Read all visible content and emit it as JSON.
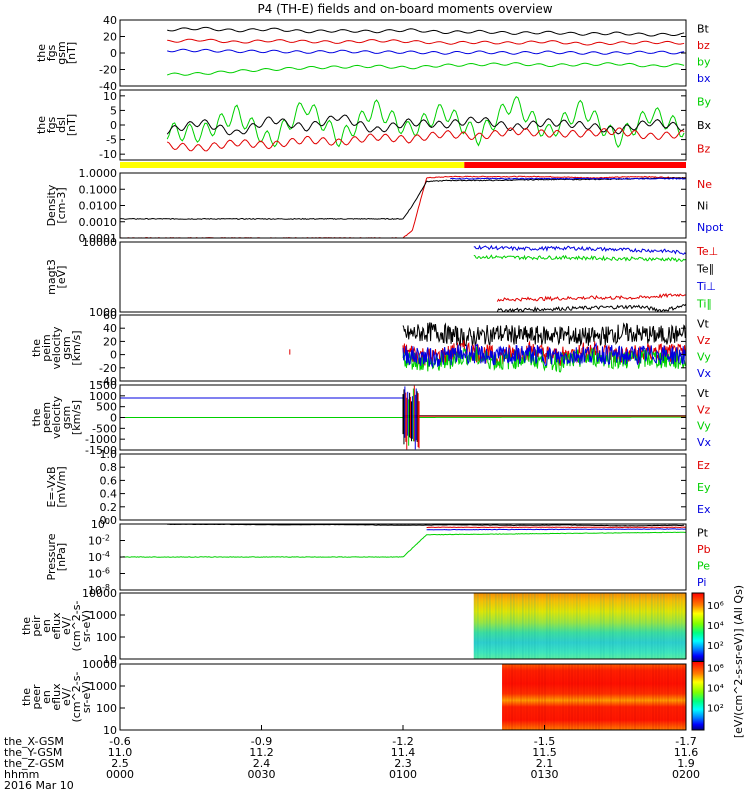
{
  "title": "P4 (TH-E) fields and on-board moments overview",
  "colors": {
    "black": "#000000",
    "red": "#e00000",
    "green": "#00d000",
    "blue": "#0000e0",
    "yellow": "#ffff00"
  },
  "bars": {
    "left_color": "#ffff00",
    "right_color": "#ff0000",
    "switch_hhmm": "0113"
  },
  "chart_data": [
    {
      "type": "line",
      "name": "fgs_gsm",
      "ylabel": [
        "the",
        "fgs",
        "gsm",
        "[nT]"
      ],
      "ylim": [
        -40,
        40
      ],
      "yticks": [
        -40,
        -20,
        0,
        20,
        40
      ],
      "series": [
        {
          "name": "Bt",
          "color": "#000000",
          "values": [
            28,
            30,
            27,
            29,
            26,
            27,
            26,
            28,
            25,
            26,
            24,
            25,
            23,
            24,
            22,
            23
          ]
        },
        {
          "name": "bz",
          "color": "#e00000",
          "values": [
            14,
            16,
            13,
            15,
            14,
            13,
            15,
            14,
            12,
            13,
            12,
            14,
            11,
            12,
            13,
            12
          ]
        },
        {
          "name": "by",
          "color": "#00d000",
          "values": [
            -26,
            -25,
            -22,
            -20,
            -18,
            -17,
            -16,
            -18,
            -15,
            -14,
            -13,
            -15,
            -14,
            -13,
            -16,
            -14
          ]
        },
        {
          "name": "bx",
          "color": "#0000e0",
          "values": [
            3,
            3,
            2,
            2,
            1,
            2,
            1,
            1,
            0,
            1,
            0,
            1,
            0,
            0,
            1,
            0
          ]
        }
      ],
      "legend": [
        "Bt",
        "bz",
        "by",
        "bx"
      ]
    },
    {
      "type": "line",
      "name": "fgs_dsl",
      "ylabel": [
        "the",
        "fgs",
        "dsl",
        "[nT]"
      ],
      "ylim": [
        -12,
        12
      ],
      "yticks": [
        -10,
        -5,
        0,
        5,
        10
      ],
      "series": [
        {
          "name": "By",
          "color": "#00d000",
          "values": [
            -2,
            -3,
            4,
            -6,
            7,
            -5,
            6,
            -2,
            5,
            -4,
            8,
            -3,
            6,
            -5,
            4,
            -2
          ]
        },
        {
          "name": "Bx",
          "color": "#000000",
          "values": [
            -2,
            1,
            -3,
            2,
            -1,
            3,
            -2,
            1,
            0,
            2,
            -1,
            1,
            0,
            -2,
            1,
            -1
          ]
        },
        {
          "name": "Bz",
          "color": "#e00000",
          "values": [
            -7,
            -8,
            -6,
            -7,
            -5,
            -6,
            -4,
            -5,
            -3,
            -4,
            -2,
            -3,
            -3,
            -2,
            -4,
            -3
          ]
        }
      ],
      "legend": [
        "By",
        "Bx",
        "Bz"
      ]
    },
    {
      "type": "line",
      "name": "density",
      "ylabel": [
        "Density",
        "[cm-3]"
      ],
      "yscale": "log",
      "ylim": [
        0.0001,
        1.0
      ],
      "yticks": [
        0.0001,
        0.001,
        0.01,
        0.1,
        1.0
      ],
      "ytick_labels": [
        "0.0001",
        "0.0010",
        "0.0100",
        "0.1000",
        "1.0000"
      ],
      "series": [
        {
          "name": "Ne",
          "color": "#e00000",
          "x_hhmm": [
            "0000",
            "0100",
            "0102",
            "0105",
            "0110",
            "0120",
            "0130",
            "0140",
            "0150",
            "0200"
          ],
          "values": [
            0.0001,
            0.0001,
            0.0003,
            0.5,
            0.6,
            0.6,
            0.6,
            0.5,
            0.6,
            0.5
          ]
        },
        {
          "name": "Ni",
          "color": "#000000",
          "x_hhmm": [
            "0000",
            "0100",
            "0102",
            "0105",
            "0110",
            "0120",
            "0130",
            "0140",
            "0150",
            "0200"
          ],
          "values": [
            0.0015,
            0.0015,
            0.01,
            0.3,
            0.35,
            0.35,
            0.4,
            0.4,
            0.45,
            0.5
          ]
        },
        {
          "name": "Npot",
          "color": "#0000e0",
          "x_hhmm": [
            "0110",
            "0200"
          ],
          "values": [
            0.45,
            0.45
          ]
        }
      ],
      "legend": [
        "Ne",
        "Ni",
        "Npot"
      ]
    },
    {
      "type": "line",
      "name": "temperature",
      "ylabel": [
        "magt3",
        "[eV]"
      ],
      "yscale": "log",
      "ylim": [
        1000,
        10000
      ],
      "yticks": [
        1000,
        10000
      ],
      "ytick_labels": [
        "1000",
        "10000"
      ],
      "series": [
        {
          "name": "Te⊥",
          "color": "#e00000",
          "x_hhmm": [
            "0120",
            "0130",
            "0140",
            "0150",
            "0200"
          ],
          "values": [
            1500,
            1550,
            1600,
            1600,
            1800
          ]
        },
        {
          "name": "Te∥",
          "color": "#000000",
          "x_hhmm": [
            "0120",
            "0130",
            "0140",
            "0150",
            "0155",
            "0200"
          ],
          "values": [
            1050,
            1100,
            1150,
            1200,
            1050,
            1250
          ]
        },
        {
          "name": "Ti⊥",
          "color": "#0000e0",
          "x_hhmm": [
            "0115",
            "0125",
            "0135",
            "0145",
            "0155",
            "0200"
          ],
          "values": [
            8500,
            8000,
            8200,
            7800,
            7500,
            7000
          ]
        },
        {
          "name": "Ti∥",
          "color": "#00d000",
          "x_hhmm": [
            "0115",
            "0125",
            "0135",
            "0145",
            "0155",
            "0200"
          ],
          "values": [
            6200,
            6000,
            6000,
            5800,
            5700,
            5500
          ]
        }
      ],
      "legend": [
        "Te⊥",
        "Te∥",
        "Ti⊥",
        "Ti∥"
      ]
    },
    {
      "type": "line",
      "name": "peim_velocity",
      "ylabel": [
        "the",
        "peim",
        "velocity",
        "gsm",
        "[km/s]"
      ],
      "ylim": [
        -40,
        60
      ],
      "yticks": [
        -40,
        -20,
        0,
        20,
        40,
        60
      ],
      "series": [
        {
          "name": "Vt",
          "color": "#000000",
          "values": [
            30,
            35,
            25,
            32,
            28,
            30,
            26,
            33,
            29,
            31
          ]
        },
        {
          "name": "Vz",
          "color": "#e00000",
          "values": [
            5,
            -5,
            8,
            -3,
            6,
            -4,
            7,
            -2,
            4,
            0
          ]
        },
        {
          "name": "Vy",
          "color": "#00d000",
          "values": [
            -5,
            -15,
            0,
            -10,
            -5,
            -12,
            -3,
            -8,
            -6,
            -10
          ]
        },
        {
          "name": "Vx",
          "color": "#0000e0",
          "values": [
            0,
            -5,
            2,
            -3,
            1,
            -4,
            2,
            -2,
            0,
            -1
          ]
        }
      ],
      "legend": [
        "Vt",
        "Vz",
        "Vy",
        "Vx"
      ]
    },
    {
      "type": "line",
      "name": "peem_velocity",
      "ylabel": [
        "the",
        "peem",
        "velocity",
        "gsm",
        "[km/s]"
      ],
      "ylim": [
        -1500,
        1500
      ],
      "yticks": [
        -1500,
        -1000,
        -500,
        0,
        500,
        1000,
        1500
      ],
      "series": [
        {
          "name": "Vt",
          "color": "#000000",
          "x_hhmm": [
            "0100",
            "0200"
          ],
          "values": [
            80,
            80
          ]
        },
        {
          "name": "Vz",
          "color": "#e00000",
          "x_hhmm": [
            "0100",
            "0200"
          ],
          "values": [
            60,
            60
          ]
        },
        {
          "name": "Vy",
          "color": "#00d000",
          "x_hhmm": [
            "0000",
            "0100",
            "0200"
          ],
          "values": [
            0,
            0,
            20
          ]
        },
        {
          "name": "Vx",
          "color": "#0000e0",
          "x_hhmm": [
            "0000",
            "0100"
          ],
          "values": [
            900,
            900
          ]
        }
      ],
      "legend": [
        "Vt",
        "Vz",
        "Vy",
        "Vx"
      ]
    },
    {
      "type": "line",
      "name": "efield",
      "ylabel": [
        "E=-VxB",
        "[mV/m]"
      ],
      "ylim": [
        0,
        1.0
      ],
      "yticks": [
        0,
        0.2,
        0.4,
        0.6,
        0.8,
        1.0
      ],
      "ytick_labels": [
        "0.0",
        "0.2",
        "0.4",
        "0.6",
        "0.8",
        "1.0"
      ],
      "series": [],
      "legend": [
        "Ez",
        "Ey",
        "Ex"
      ],
      "legend_colors": [
        "#e00000",
        "#00d000",
        "#0000e0"
      ]
    },
    {
      "type": "line",
      "name": "pressure",
      "ylabel": [
        "Pressure",
        "[nPa]"
      ],
      "yscale": "log",
      "ylim": [
        1e-08,
        1.0
      ],
      "series": [
        {
          "name": "Pt",
          "color": "#000000",
          "values": [
            0.9,
            0.9,
            0.8,
            0.85,
            0.7,
            0.8,
            0.7,
            0.75,
            0.6,
            0.7
          ]
        },
        {
          "name": "Pb",
          "color": "#e00000",
          "x_hhmm": [
            "0105",
            "0200"
          ],
          "values": [
            0.4,
            0.4
          ]
        },
        {
          "name": "Pe",
          "color": "#00d000",
          "x_hhmm": [
            "0000",
            "0100",
            "0105",
            "0200"
          ],
          "values": [
            0.0001,
            0.0001,
            0.05,
            0.1
          ]
        },
        {
          "name": "Pi",
          "color": "#0000e0",
          "x_hhmm": [
            "0105",
            "0200"
          ],
          "values": [
            0.2,
            0.25
          ]
        }
      ],
      "legend": [
        "Pt",
        "Pb",
        "Pe",
        "Pi"
      ]
    },
    {
      "type": "heatmap",
      "name": "peir_spectrogram",
      "ylabel": [
        "the",
        "peir",
        "en",
        "eflux",
        "eV/",
        "(cm^2-s-",
        "sr-eV)"
      ],
      "yscale": "log",
      "ylim": [
        10,
        10000
      ],
      "ytick_labels": [
        "10",
        "100",
        "1000",
        "10000"
      ],
      "x_start_hhmm": "0115"
    },
    {
      "type": "heatmap",
      "name": "peer_spectrogram",
      "ylabel": [
        "the",
        "peer",
        "en",
        "eflux",
        "eV/",
        "(cm^2-s-",
        "sr-eV)"
      ],
      "yscale": "log",
      "ylim": [
        10,
        10000
      ],
      "ytick_labels": [
        "10",
        "100",
        "1000",
        "10000"
      ],
      "x_start_hhmm": "0121"
    }
  ],
  "colorbar": {
    "label": "[eV/(cm^2-s-sr-eV)] (All Qs)",
    "ticks_top": [
      "10⁶",
      "10⁴",
      "10²"
    ],
    "ticks_bottom": [
      "10⁶",
      "10⁴",
      "10²"
    ]
  },
  "xaxis": {
    "hhmm": [
      "0000",
      "0030",
      "0100",
      "0130",
      "0200"
    ],
    "rows": [
      {
        "label": "the_X-GSM",
        "values": [
          "-0.6",
          "-0.9",
          "-1.2",
          "-1.5",
          "-1.7"
        ]
      },
      {
        "label": "the_Y-GSM",
        "values": [
          "11.0",
          "11.2",
          "11.4",
          "11.5",
          "11.6"
        ]
      },
      {
        "label": "the_Z-GSM",
        "values": [
          "2.5",
          "2.4",
          "2.3",
          "2.1",
          "1.9"
        ]
      },
      {
        "label": "hhmm",
        "values": [
          "0000",
          "0030",
          "0100",
          "0130",
          "0200"
        ]
      }
    ],
    "date": "2016 Mar 10"
  }
}
